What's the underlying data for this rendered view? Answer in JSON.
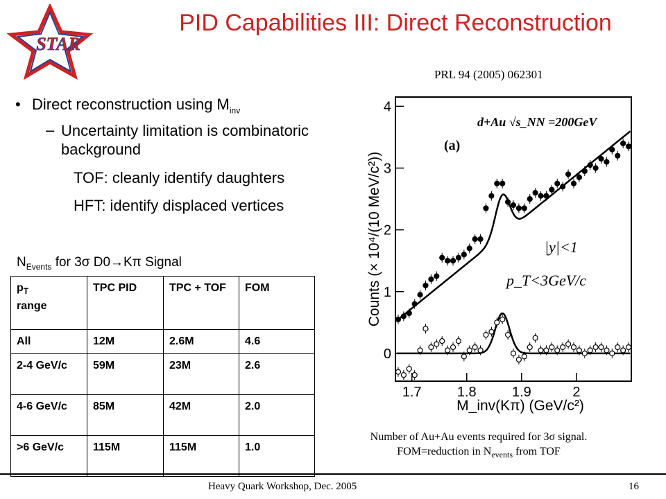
{
  "slide": {
    "title": "PID Capabilities III: Direct Reconstruction",
    "logo_text": "STAR",
    "reference": "PRL 94 (2005) 062301",
    "bullets": {
      "b1_text": "Direct reconstruction using M",
      "b1_sub": "inv",
      "b2_text": "Uncertainty limitation is combinatoric background",
      "b3": "TOF: cleanly identify daughters",
      "b4": "HFT: identify displaced vertices"
    },
    "table_caption": {
      "n": "N",
      "events_sub": "Events",
      "rest": " for 3σ  D0→Kπ Signal"
    },
    "table": {
      "header": [
        "p_T range",
        "TPC PID",
        "TPC + TOF",
        "FOM"
      ],
      "header_pt_p": "p",
      "header_pt_sub": "T",
      "header_pt_rest": "range",
      "rows": [
        [
          "All",
          "12M",
          "2.6M",
          "4.6"
        ],
        [
          "2-4 GeV/c",
          "59M",
          "23M",
          "2.6"
        ],
        [
          "4-6 GeV/c",
          "85M",
          "42M",
          "2.0"
        ],
        [
          ">6 GeV/c",
          "115M",
          "115M",
          "1.0"
        ]
      ]
    },
    "figure_caption": {
      "line1": "Number of Au+Au events required for 3σ signal.",
      "line2_a": "FOM=reduction in N",
      "line2_sub": "events",
      "line2_b": " from TOF"
    },
    "footer": "Heavy Quark Workshop, Dec. 2005",
    "page_number": "16"
  },
  "chart_data": {
    "type": "scatter",
    "title": "",
    "panel_label": "(a)",
    "annotation_system": "d+Au  √s_NN =200GeV",
    "annotation_rapidity": "|y|<1",
    "annotation_pt": "p_T<3GeV/c",
    "xlabel": "M_inv(Kπ) (GeV/c²)",
    "ylabel": "Counts (× 10⁴/(10 MeV/c²))",
    "xlim": [
      1.67,
      2.1
    ],
    "ylim": [
      -0.45,
      4.15
    ],
    "xticks": [
      "1.7",
      "1.8",
      "1.9",
      "2"
    ],
    "yticks": [
      "0",
      "1",
      "2",
      "3",
      "4"
    ],
    "series": [
      {
        "marker": "filled",
        "x": [
          1.675,
          1.685,
          1.695,
          1.705,
          1.715,
          1.725,
          1.735,
          1.745,
          1.755,
          1.765,
          1.775,
          1.785,
          1.795,
          1.805,
          1.815,
          1.825,
          1.835,
          1.845,
          1.855,
          1.865,
          1.875,
          1.885,
          1.895,
          1.905,
          1.915,
          1.925,
          1.935,
          1.945,
          1.955,
          1.965,
          1.975,
          1.985,
          1.995,
          2.005,
          2.015,
          2.025,
          2.035,
          2.045,
          2.055,
          2.065,
          2.075,
          2.085,
          2.095
        ],
        "y": [
          0.55,
          0.6,
          0.65,
          0.8,
          0.95,
          1.1,
          1.2,
          1.25,
          1.55,
          1.5,
          1.5,
          1.55,
          1.6,
          1.7,
          1.85,
          1.85,
          2.35,
          2.55,
          2.75,
          2.75,
          2.45,
          2.4,
          2.35,
          2.35,
          2.5,
          2.6,
          2.55,
          2.55,
          2.65,
          2.75,
          2.7,
          2.9,
          2.75,
          2.85,
          2.95,
          3.05,
          3.0,
          3.15,
          3.1,
          3.3,
          3.2,
          3.4,
          3.35
        ]
      },
      {
        "marker": "open",
        "x": [
          1.675,
          1.685,
          1.695,
          1.705,
          1.715,
          1.725,
          1.735,
          1.745,
          1.755,
          1.765,
          1.775,
          1.785,
          1.795,
          1.805,
          1.815,
          1.825,
          1.835,
          1.845,
          1.855,
          1.865,
          1.875,
          1.885,
          1.895,
          1.905,
          1.915,
          1.925,
          1.935,
          1.945,
          1.955,
          1.965,
          1.975,
          1.985,
          1.995,
          2.005,
          2.015,
          2.025,
          2.035,
          2.045,
          2.055,
          2.065,
          2.075,
          2.085,
          2.095
        ],
        "y": [
          -0.3,
          -0.35,
          -0.25,
          -0.35,
          0.05,
          0.4,
          0.1,
          0.15,
          0.2,
          0.05,
          0.1,
          0.2,
          -0.05,
          0.05,
          0.1,
          0.05,
          0.3,
          0.35,
          0.5,
          0.55,
          0.3,
          0.0,
          -0.1,
          -0.05,
          0.1,
          0.25,
          0.05,
          0.05,
          0.1,
          0.05,
          0.1,
          0.15,
          0.1,
          0.05,
          0.0,
          0.05,
          0.1,
          0.1,
          0.05,
          0.0,
          0.1,
          0.05,
          0.1
        ]
      }
    ],
    "fit_background_slope": 7.2,
    "fit_peak": {
      "mean": 1.865,
      "sigma": 0.013,
      "amplitude": 0.65
    }
  }
}
